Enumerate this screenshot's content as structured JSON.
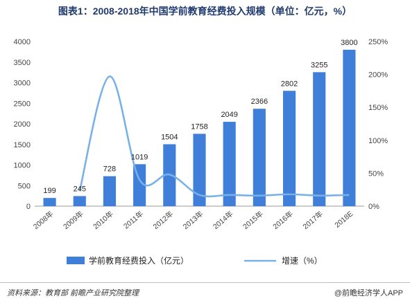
{
  "title": "图表1：2008-2018年中国学前教育经费投入规模（单位：亿元，%）",
  "source": "资料来源：教育部 前瞻产业研究院整理",
  "brand": "@前瞻经济学人APP",
  "chart_data": {
    "type": "bar",
    "title": "图表1：2008-2018年中国学前教育经费投入规模（单位：亿元，%）",
    "categories": [
      "2008年",
      "2009年",
      "2010年",
      "2011年",
      "2012年",
      "2013年",
      "2014年",
      "2015年",
      "2016年",
      "2017年",
      "2018E"
    ],
    "series": [
      {
        "name": "学前教育经费投入（亿元）",
        "type": "bar",
        "axis": "left",
        "values": [
          199,
          245,
          728,
          1019,
          1504,
          1758,
          2049,
          2366,
          2802,
          3255,
          3800
        ]
      },
      {
        "name": "增速（%）",
        "type": "line",
        "axis": "right",
        "values": [
          null,
          23,
          197,
          40,
          48,
          17,
          17,
          16,
          18,
          16,
          17
        ]
      }
    ],
    "ylim_left": [
      0,
      4000
    ],
    "ylim_right": [
      0,
      250
    ],
    "yticks_left": [
      "0",
      "500",
      "1000",
      "1500",
      "2000",
      "2500",
      "3000",
      "3500",
      "4000"
    ],
    "yticks_right": [
      "0%",
      "50%",
      "100%",
      "150%",
      "200%",
      "250%"
    ],
    "data_labels": [
      "199",
      "245",
      "728",
      "1019",
      "1504",
      "1758",
      "2049",
      "2366",
      "2802",
      "3255",
      "3800"
    ],
    "legend_position": "bottom",
    "colors": {
      "bar": "#3f7fd9",
      "line": "#7ab0e8"
    }
  }
}
